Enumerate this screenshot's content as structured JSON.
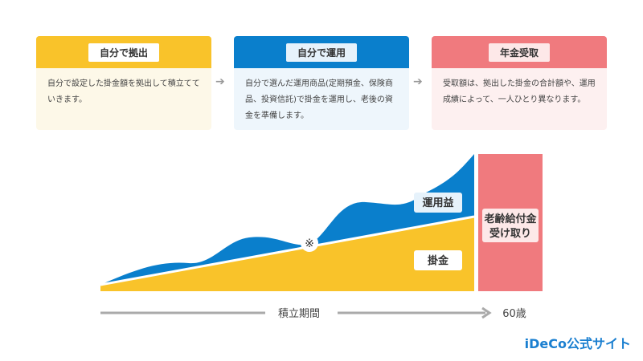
{
  "steps": [
    {
      "title": "自分で拠出",
      "text": "自分で設定した掛金額を拠出して積立てていきます。"
    },
    {
      "title": "自分で運用",
      "text": "自分で選んだ運用商品(定期預金、保険商品、投資信託)で掛金を運用し、老後の資金を準備します。"
    },
    {
      "title": "年金受取",
      "text": "受取額は、拠出した掛金の合計額や、運用成績によって、一人ひとり異なります。"
    }
  ],
  "chart": {
    "gain_label": "運用益",
    "contribution_label": "掛金",
    "note_mark": "※",
    "payout_label_1": "老齢給付金",
    "payout_label_2": "受け取り",
    "period_label": "積立期間",
    "age_label": "60歳"
  },
  "logo": "iDeCo公式サイト"
}
